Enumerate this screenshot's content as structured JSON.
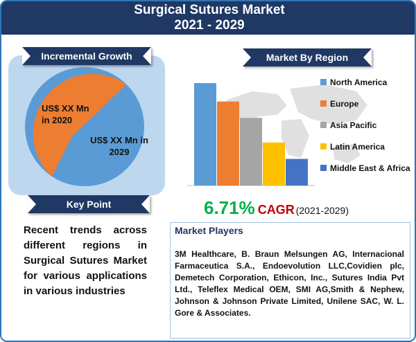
{
  "header": {
    "title_line1": "Surgical Sutures Market",
    "title_line2": "2021 - 2029"
  },
  "incremental": {
    "heading": "Incremental Growth",
    "label_2020": "US$ XX Mn in 2020",
    "label_2029": "US$ XX Mn in 2029",
    "colors": {
      "y2020": "#ed7d31",
      "y2029": "#5b9bd5"
    }
  },
  "key_point": {
    "heading": "Key Point",
    "text": "Recent trends across different regions in Surgical Sutures Market for various applications in various industries"
  },
  "region": {
    "heading": "Market By Region"
  },
  "chart_data": {
    "type": "bar",
    "categories": [
      "North America",
      "Europe",
      "Asia Pacific",
      "Latin America",
      "Middle East & Africa"
    ],
    "values": [
      5,
      4.1,
      3.3,
      2.1,
      1.3
    ],
    "colors": [
      "#5b9bd5",
      "#ed7d31",
      "#a5a5a5",
      "#ffc000",
      "#4472c4"
    ],
    "legend_position": "right",
    "grid": false
  },
  "cagr": {
    "value": "6.71%",
    "label": "CAGR",
    "period": "(2021-2029)"
  },
  "players": {
    "heading": "Market Players",
    "text": "3M Healthcare, B. Braun Melsungen AG, Internacional Farmaceutica S.A., Endoevolution LLC,Covidien plc, Demetech Corporation, Ethicon, Inc., Sutures India Pvt Ltd., Teleflex Medical OEM, SMI AG,Smith & Nephew, Johnson & Johnson Private Limited, Unilene SAC, W. L. Gore & Associates."
  }
}
